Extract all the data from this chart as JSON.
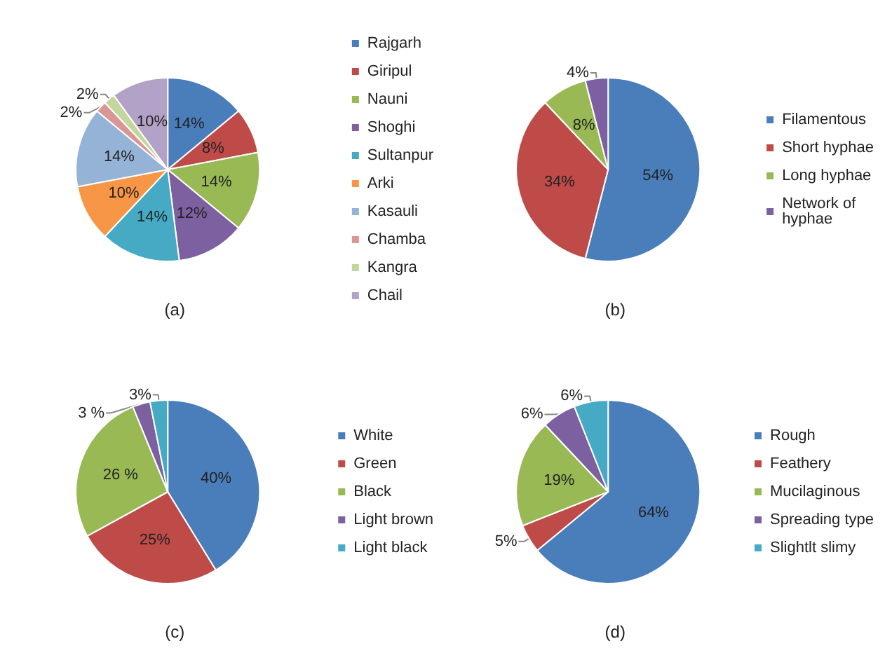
{
  "chart_data": [
    {
      "type": "pie",
      "title": "(a)",
      "categories": [
        "Rajgarh",
        "Giripul",
        "Nauni",
        "Shoghi",
        "Sultanpur",
        "Arki",
        "Kasauli",
        "Chamba",
        "Kangra",
        "Chail"
      ],
      "values": [
        14,
        8,
        14,
        12,
        14,
        10,
        14,
        2,
        2,
        10
      ],
      "colors": [
        "#4a7ebb",
        "#be4b48",
        "#98b954",
        "#7d60a0",
        "#46aac5",
        "#f79646",
        "#95b3d7",
        "#d99694",
        "#c3d69b",
        "#b3a2c7"
      ],
      "value_labels": [
        "14%",
        "8%",
        "14%",
        "12%",
        "14%",
        "10%",
        "14%",
        "2%",
        "2%",
        "10%"
      ],
      "legend": "right"
    },
    {
      "type": "pie",
      "title": "(b)",
      "categories": [
        "Filamentous",
        "Short hyphae",
        "Long hyphae",
        "Network of hyphae"
      ],
      "values": [
        54,
        34,
        8,
        4
      ],
      "colors": [
        "#4a7ebb",
        "#be4b48",
        "#98b954",
        "#7d60a0"
      ],
      "value_labels": [
        "54%",
        "34%",
        "8%",
        "4%"
      ],
      "legend": "right"
    },
    {
      "type": "pie",
      "title": "(c)",
      "categories": [
        "White",
        "Green",
        "Black",
        "Light brown",
        "Light black"
      ],
      "values": [
        40,
        25,
        26,
        3,
        3
      ],
      "colors": [
        "#4a7ebb",
        "#be4b48",
        "#98b954",
        "#7d60a0",
        "#46aac5"
      ],
      "value_labels": [
        "40%",
        "25%",
        "26 %",
        "3 %",
        "3%"
      ],
      "legend": "right"
    },
    {
      "type": "pie",
      "title": "(d)",
      "categories": [
        "Rough",
        "Feathery",
        "Mucilaginous",
        "Spreading type",
        "Slightlt slimy"
      ],
      "values": [
        64,
        5,
        19,
        6,
        6
      ],
      "colors": [
        "#4a7ebb",
        "#be4b48",
        "#98b954",
        "#7d60a0",
        "#46aac5"
      ],
      "value_labels": [
        "64%",
        "5%",
        "19%",
        "6%",
        "6%"
      ],
      "legend": "right"
    }
  ]
}
